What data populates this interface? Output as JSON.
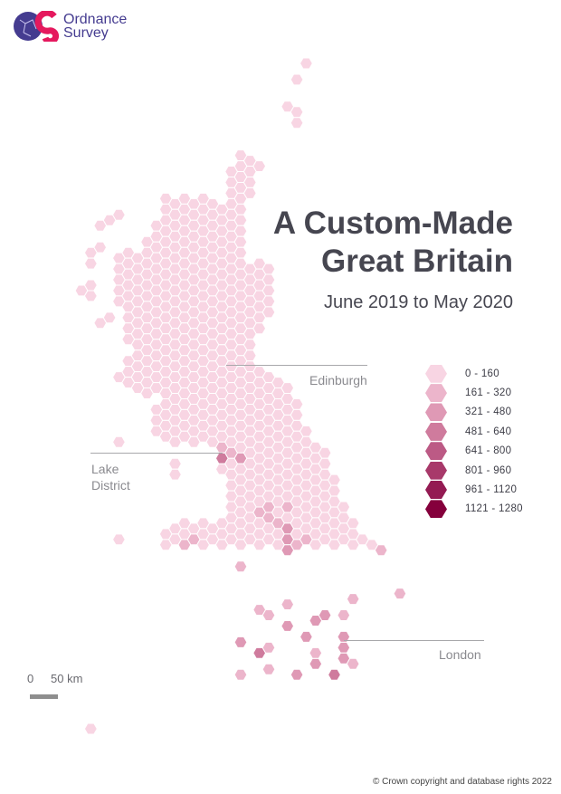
{
  "logo": {
    "line1": "Ordnance",
    "line2": "Survey",
    "colors": {
      "primary": "#453c90",
      "accent": "#e5195e"
    }
  },
  "title": {
    "line1": "A Custom-Made",
    "line2": "Great Britain"
  },
  "subtitle": "June 2019 to May 2020",
  "places": {
    "edinburgh": "Edinburgh",
    "lake_district_1": "Lake",
    "lake_district_2": "District",
    "london": "London"
  },
  "legend": [
    {
      "label": "0 - 160",
      "color": "#f8d5e3"
    },
    {
      "label": "161 - 320",
      "color": "#ecb5cb"
    },
    {
      "label": "321 - 480",
      "color": "#df99b5"
    },
    {
      "label": "481 - 640",
      "color": "#cf7b9d"
    },
    {
      "label": "641 - 800",
      "color": "#bc5a85"
    },
    {
      "label": "801 - 960",
      "color": "#a8396a"
    },
    {
      "label": "961 - 1120",
      "color": "#941b53"
    },
    {
      "label": "1121 - 1280",
      "color": "#85003c"
    }
  ],
  "scale": {
    "zero": "0",
    "distance": "50 km"
  },
  "copyright": "© Crown copyright and database rights 2022"
}
